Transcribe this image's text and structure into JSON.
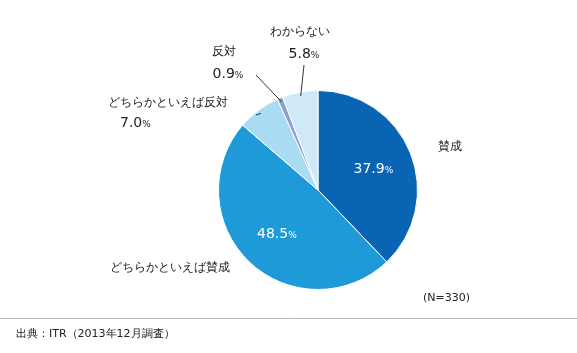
{
  "chart_data": {
    "type": "pie",
    "categories": [
      "賛成",
      "どちらかといえば賛成",
      "どちらかといえば反対",
      "反対",
      "わからない"
    ],
    "values": [
      37.9,
      48.5,
      7.0,
      0.9,
      5.8
    ],
    "value_labels": [
      "37.9%",
      "48.5%",
      "7.0%",
      "0.9%",
      "5.8%"
    ],
    "colors": [
      "#0a64b4",
      "#1f9ad8",
      "#a9dbf3",
      "#8c9fd3",
      "#cfe9f8"
    ],
    "data_labels": true,
    "annotations": [
      "(N=330)",
      "出典：ITR（2013年12月調査）"
    ]
  }
}
